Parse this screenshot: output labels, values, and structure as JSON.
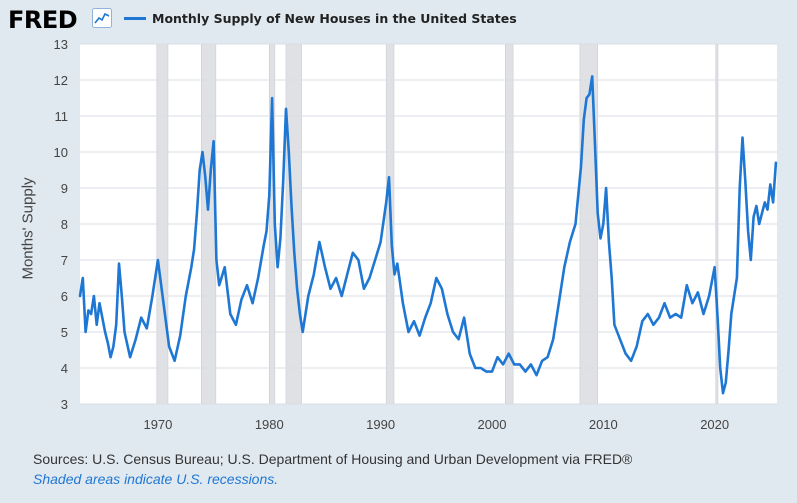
{
  "header": {
    "logo_text": "FRED",
    "series_title": "Monthly Supply of New Houses in the United States"
  },
  "colors": {
    "line": "#1f77d4",
    "plot_bg": "#ffffff",
    "page_bg": "#e1e9f0",
    "recession": "#dfe1e5",
    "grid": "#d9dde3"
  },
  "footer": {
    "source": "Sources: U.S. Census Bureau; U.S. Department of Housing and Urban Development via FRED®",
    "note": "Shaded areas indicate U.S. recessions."
  },
  "chart_data": {
    "type": "line",
    "title": "Monthly Supply of New Houses in the United States",
    "xlabel": "",
    "ylabel": "Months' Supply",
    "xlim": [
      1963.0,
      2025.6
    ],
    "ylim": [
      3,
      13
    ],
    "yticks": [
      3,
      4,
      5,
      6,
      7,
      8,
      9,
      10,
      11,
      12,
      13
    ],
    "xticks": [
      1970,
      1980,
      1990,
      2000,
      2010,
      2020
    ],
    "grid": "horizontal",
    "recessions": [
      [
        1969.9,
        1970.9
      ],
      [
        1973.9,
        1975.2
      ],
      [
        1980.0,
        1980.5
      ],
      [
        1981.5,
        1982.9
      ],
      [
        1990.5,
        1991.2
      ],
      [
        2001.2,
        2001.9
      ],
      [
        2007.9,
        2009.5
      ],
      [
        2020.1,
        2020.3
      ]
    ],
    "series": [
      {
        "name": "Monthly Supply of New Houses in the United States",
        "x": [
          1963.0,
          1963.25,
          1963.5,
          1963.75,
          1964.0,
          1964.25,
          1964.5,
          1964.75,
          1965.0,
          1965.25,
          1965.5,
          1965.75,
          1966.0,
          1966.25,
          1966.5,
          1966.75,
          1967.0,
          1967.5,
          1968.0,
          1968.5,
          1969.0,
          1969.5,
          1970.0,
          1970.5,
          1970.75,
          1971.0,
          1971.5,
          1972.0,
          1972.5,
          1973.0,
          1973.25,
          1973.5,
          1973.75,
          1974.0,
          1974.25,
          1974.5,
          1974.75,
          1975.0,
          1975.25,
          1975.5,
          1976.0,
          1976.5,
          1977.0,
          1977.5,
          1978.0,
          1978.5,
          1979.0,
          1979.5,
          1979.75,
          1980.0,
          1980.25,
          1980.5,
          1980.75,
          1981.0,
          1981.25,
          1981.5,
          1981.75,
          1982.0,
          1982.25,
          1982.5,
          1982.75,
          1983.0,
          1983.5,
          1984.0,
          1984.5,
          1985.0,
          1985.5,
          1986.0,
          1986.5,
          1987.0,
          1987.5,
          1988.0,
          1988.5,
          1989.0,
          1989.5,
          1990.0,
          1990.5,
          1990.75,
          1991.0,
          1991.25,
          1991.5,
          1992.0,
          1992.5,
          1993.0,
          1993.5,
          1994.0,
          1994.5,
          1995.0,
          1995.5,
          1996.0,
          1996.5,
          1997.0,
          1997.5,
          1998.0,
          1998.5,
          1999.0,
          1999.5,
          2000.0,
          2000.5,
          2001.0,
          2001.5,
          2002.0,
          2002.5,
          2003.0,
          2003.5,
          2004.0,
          2004.5,
          2005.0,
          2005.5,
          2006.0,
          2006.5,
          2007.0,
          2007.5,
          2008.0,
          2008.25,
          2008.5,
          2008.75,
          2009.0,
          2009.25,
          2009.5,
          2009.75,
          2010.0,
          2010.25,
          2010.5,
          2010.75,
          2011.0,
          2011.5,
          2012.0,
          2012.5,
          2013.0,
          2013.5,
          2014.0,
          2014.5,
          2015.0,
          2015.5,
          2016.0,
          2016.5,
          2017.0,
          2017.5,
          2018.0,
          2018.5,
          2019.0,
          2019.5,
          2020.0,
          2020.25,
          2020.5,
          2020.75,
          2021.0,
          2021.25,
          2021.5,
          2022.0,
          2022.25,
          2022.5,
          2022.75,
          2023.0,
          2023.25,
          2023.5,
          2023.75,
          2024.0,
          2024.25,
          2024.5,
          2024.75,
          2025.0,
          2025.25,
          2025.5
        ],
        "values": [
          6.0,
          6.5,
          5.0,
          5.6,
          5.5,
          6.0,
          5.2,
          5.8,
          5.4,
          5.0,
          4.7,
          4.3,
          4.6,
          5.2,
          6.9,
          6.0,
          5.0,
          4.3,
          4.8,
          5.4,
          5.1,
          6.0,
          7.0,
          5.8,
          5.2,
          4.6,
          4.2,
          4.9,
          6.0,
          6.8,
          7.3,
          8.3,
          9.5,
          10.0,
          9.3,
          8.4,
          9.5,
          10.3,
          7.0,
          6.3,
          6.8,
          5.5,
          5.2,
          5.9,
          6.3,
          5.8,
          6.5,
          7.4,
          7.8,
          8.8,
          11.5,
          8.0,
          6.8,
          7.6,
          9.2,
          11.2,
          10.0,
          8.5,
          7.2,
          6.2,
          5.5,
          5.0,
          6.0,
          6.6,
          7.5,
          6.8,
          6.2,
          6.5,
          6.0,
          6.6,
          7.2,
          7.0,
          6.2,
          6.5,
          7.0,
          7.5,
          8.6,
          9.3,
          7.4,
          6.6,
          6.9,
          5.8,
          5.0,
          5.3,
          4.9,
          5.4,
          5.8,
          6.5,
          6.2,
          5.5,
          5.0,
          4.8,
          5.4,
          4.4,
          4.0,
          4.0,
          3.9,
          3.9,
          4.3,
          4.1,
          4.4,
          4.1,
          4.1,
          3.9,
          4.1,
          3.8,
          4.2,
          4.3,
          4.8,
          5.8,
          6.8,
          7.5,
          8.0,
          9.6,
          10.9,
          11.5,
          11.6,
          12.1,
          10.2,
          8.3,
          7.6,
          8.0,
          9.0,
          7.5,
          6.5,
          5.2,
          4.8,
          4.4,
          4.2,
          4.6,
          5.3,
          5.5,
          5.2,
          5.4,
          5.8,
          5.4,
          5.5,
          5.4,
          6.3,
          5.8,
          6.1,
          5.5,
          6.0,
          6.8,
          5.5,
          4.0,
          3.3,
          3.6,
          4.5,
          5.5,
          6.5,
          9.0,
          10.4,
          9.2,
          7.8,
          7.0,
          8.2,
          8.5,
          8.0,
          8.3,
          8.6,
          8.4,
          9.1,
          8.6,
          9.7
        ]
      }
    ]
  }
}
